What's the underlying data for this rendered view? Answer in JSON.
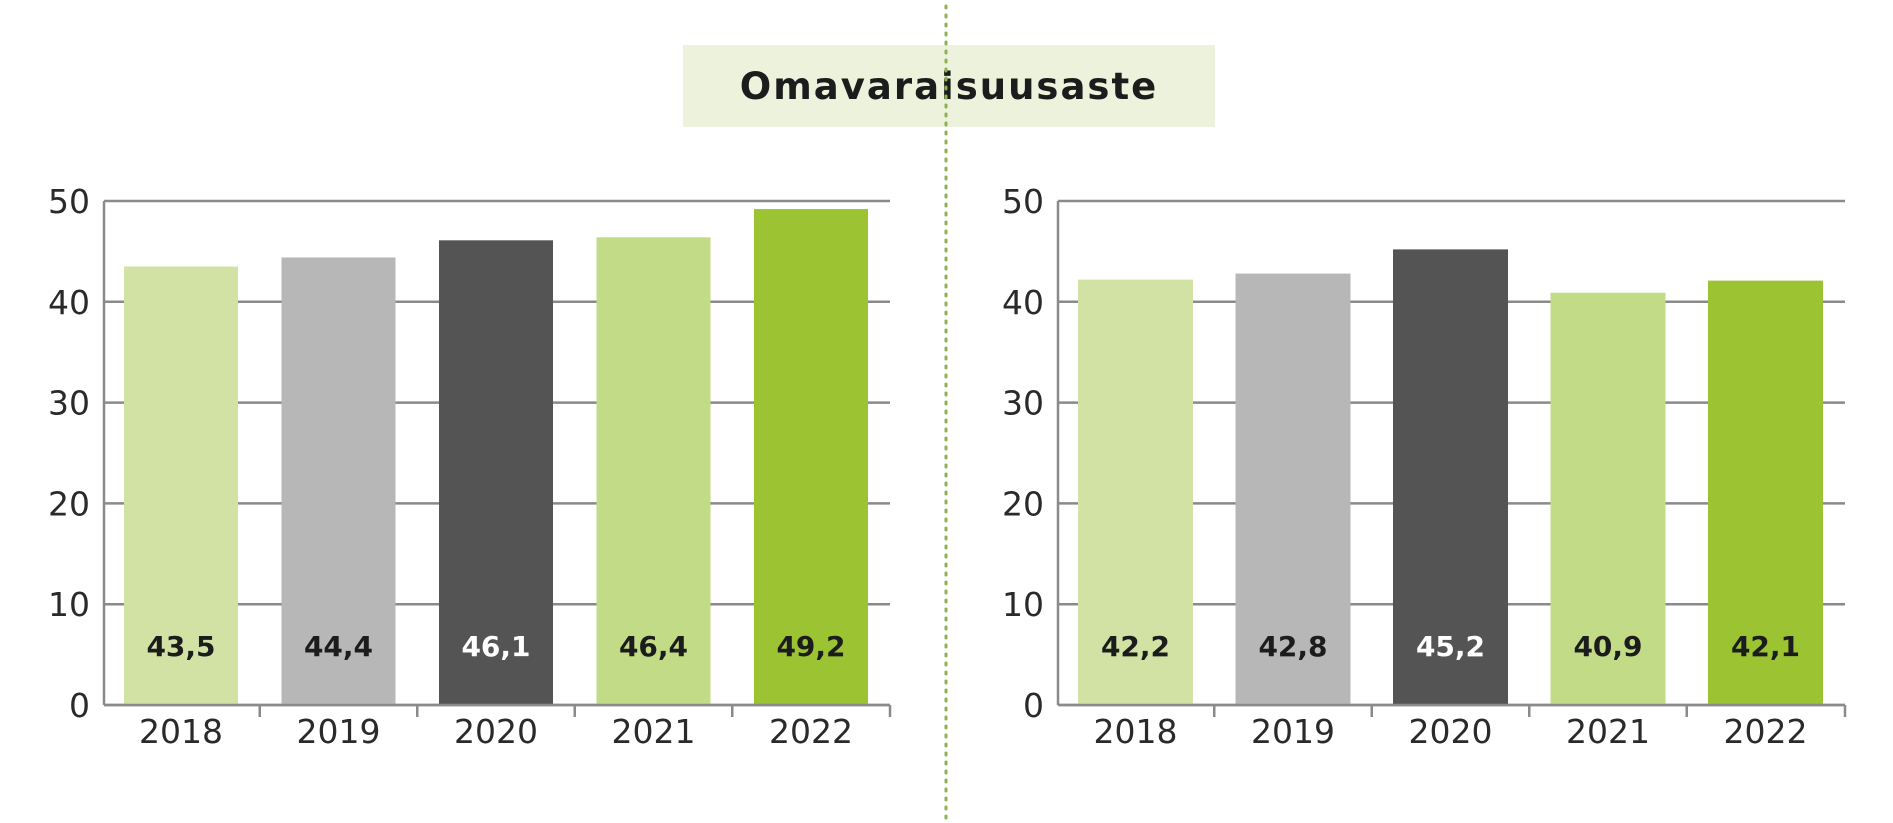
{
  "title": "Omavaraisuusaste",
  "colors": {
    "bar": [
      "#d1e2a4",
      "#b7b7b7",
      "#545454",
      "#c2db87",
      "#9cc332"
    ],
    "label": [
      "#1c1c1c",
      "#1c1c1c",
      "#ffffff",
      "#1c1c1c",
      "#1c1c1c"
    ],
    "axis": "#8a8a8a",
    "divider": "#8ab24e"
  },
  "chart_data": [
    {
      "type": "bar",
      "categories": [
        "2018",
        "2019",
        "2020",
        "2021",
        "2022"
      ],
      "values": [
        43.5,
        44.4,
        46.1,
        46.4,
        49.2
      ],
      "value_labels": [
        "43,5",
        "44,4",
        "46,1",
        "46,4",
        "49,2"
      ],
      "yticks": [
        "0",
        "10",
        "20",
        "30",
        "40",
        "50"
      ],
      "ylim": [
        0,
        50
      ],
      "grid": true
    },
    {
      "type": "bar",
      "categories": [
        "2018",
        "2019",
        "2020",
        "2021",
        "2022"
      ],
      "values": [
        42.2,
        42.8,
        45.2,
        40.9,
        42.1
      ],
      "value_labels": [
        "42,2",
        "42,8",
        "45,2",
        "40,9",
        "42,1"
      ],
      "yticks": [
        "0",
        "10",
        "20",
        "30",
        "40",
        "50"
      ],
      "ylim": [
        0,
        50
      ],
      "grid": true
    }
  ]
}
